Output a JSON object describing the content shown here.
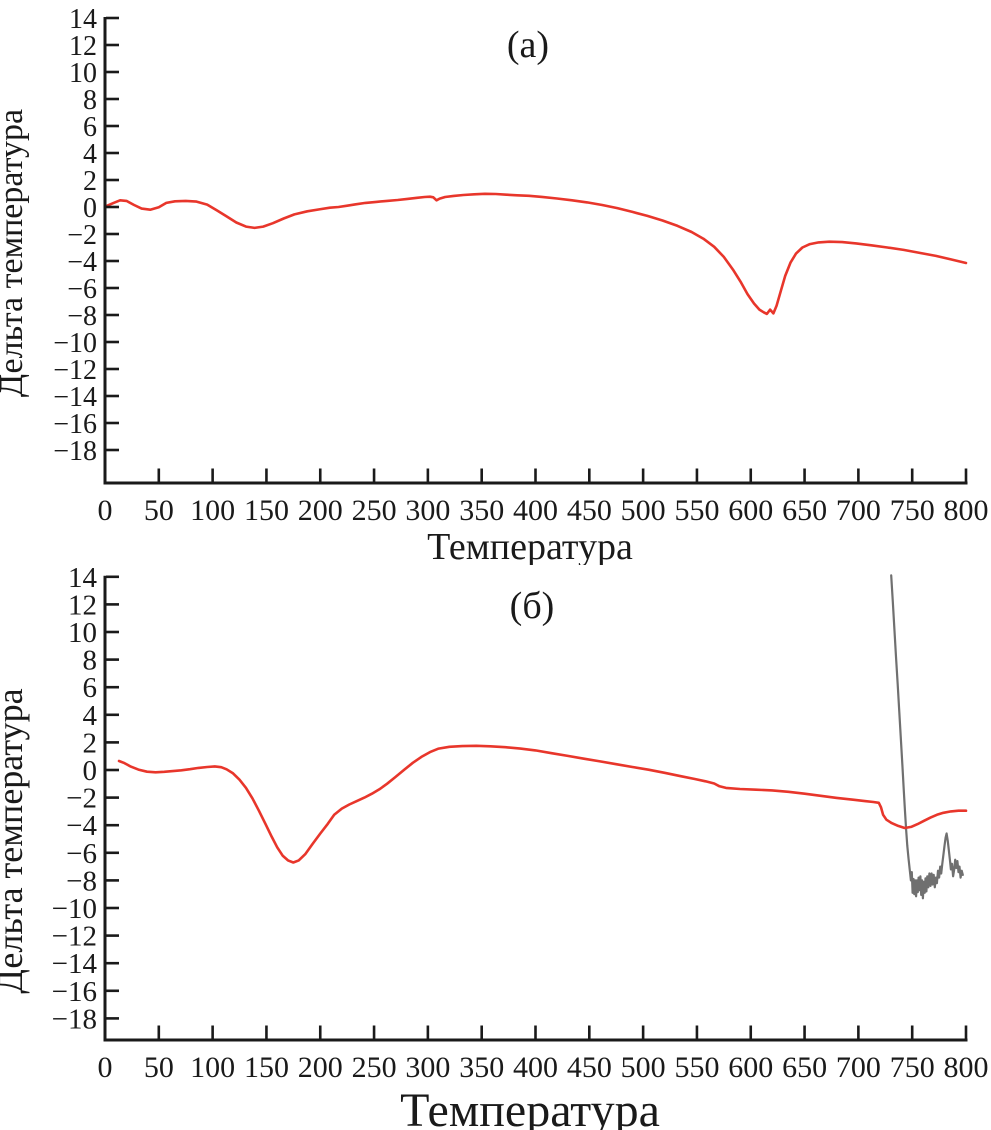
{
  "page": {
    "background": "#ffffff",
    "axis_color": "#1a1a1a",
    "text_color": "#1a1a1a"
  },
  "chart_data": [
    {
      "id": "a",
      "type": "line",
      "title": "(а)",
      "xlabel": "Температура",
      "ylabel": "Дельта температура",
      "xlim": [
        0,
        800
      ],
      "ylim": [
        -18,
        14
      ],
      "grid": false,
      "legend": "none",
      "x_ticks": [
        0,
        50,
        100,
        150,
        200,
        250,
        300,
        350,
        400,
        450,
        500,
        550,
        600,
        650,
        700,
        750,
        800
      ],
      "y_ticks": [
        14,
        12,
        10,
        8,
        6,
        4,
        2,
        0,
        -2,
        -4,
        -6,
        -8,
        -10,
        -12,
        -14,
        -16,
        -18
      ],
      "series": [
        {
          "name": "dta-curve-red",
          "color": "#e8362b",
          "width": 2.6,
          "points": [
            [
              2,
              0.1
            ],
            [
              8,
              0.3
            ],
            [
              14,
              0.5
            ],
            [
              20,
              0.45
            ],
            [
              27,
              0.15
            ],
            [
              34,
              -0.12
            ],
            [
              42,
              -0.2
            ],
            [
              50,
              -0.02
            ],
            [
              57,
              0.3
            ],
            [
              65,
              0.42
            ],
            [
              75,
              0.45
            ],
            [
              85,
              0.4
            ],
            [
              95,
              0.18
            ],
            [
              104,
              -0.25
            ],
            [
              113,
              -0.7
            ],
            [
              122,
              -1.15
            ],
            [
              131,
              -1.45
            ],
            [
              139,
              -1.55
            ],
            [
              147,
              -1.45
            ],
            [
              156,
              -1.2
            ],
            [
              166,
              -0.85
            ],
            [
              176,
              -0.55
            ],
            [
              188,
              -0.32
            ],
            [
              199,
              -0.18
            ],
            [
              209,
              -0.05
            ],
            [
              217,
              0.0
            ],
            [
              225,
              0.1
            ],
            [
              233,
              0.2
            ],
            [
              242,
              0.3
            ],
            [
              252,
              0.38
            ],
            [
              262,
              0.45
            ],
            [
              272,
              0.52
            ],
            [
              281,
              0.6
            ],
            [
              290,
              0.68
            ],
            [
              297,
              0.74
            ],
            [
              302,
              0.76
            ],
            [
              305,
              0.72
            ],
            [
              308,
              0.5
            ],
            [
              311,
              0.62
            ],
            [
              316,
              0.74
            ],
            [
              324,
              0.82
            ],
            [
              333,
              0.89
            ],
            [
              343,
              0.94
            ],
            [
              353,
              0.98
            ],
            [
              363,
              0.96
            ],
            [
              373,
              0.91
            ],
            [
              383,
              0.87
            ],
            [
              394,
              0.83
            ],
            [
              406,
              0.75
            ],
            [
              420,
              0.63
            ],
            [
              434,
              0.5
            ],
            [
              448,
              0.34
            ],
            [
              462,
              0.15
            ],
            [
              476,
              -0.08
            ],
            [
              490,
              -0.36
            ],
            [
              504,
              -0.66
            ],
            [
              518,
              -1.0
            ],
            [
              532,
              -1.4
            ],
            [
              545,
              -1.85
            ],
            [
              556,
              -2.35
            ],
            [
              566,
              -2.95
            ],
            [
              575,
              -3.7
            ],
            [
              584,
              -4.7
            ],
            [
              591,
              -5.6
            ],
            [
              597,
              -6.45
            ],
            [
              603,
              -7.15
            ],
            [
              608,
              -7.6
            ],
            [
              612,
              -7.8
            ],
            [
              615,
              -7.92
            ],
            [
              618,
              -7.6
            ],
            [
              621,
              -7.88
            ],
            [
              624,
              -7.3
            ],
            [
              628,
              -6.2
            ],
            [
              632,
              -5.1
            ],
            [
              637,
              -4.1
            ],
            [
              642,
              -3.45
            ],
            [
              648,
              -3.0
            ],
            [
              655,
              -2.75
            ],
            [
              663,
              -2.62
            ],
            [
              673,
              -2.57
            ],
            [
              685,
              -2.6
            ],
            [
              698,
              -2.7
            ],
            [
              712,
              -2.84
            ],
            [
              727,
              -3.0
            ],
            [
              742,
              -3.18
            ],
            [
              757,
              -3.4
            ],
            [
              772,
              -3.62
            ],
            [
              786,
              -3.88
            ],
            [
              800,
              -4.15
            ]
          ]
        }
      ]
    },
    {
      "id": "b",
      "type": "line",
      "title": "(б)",
      "xlabel": "Температура",
      "ylabel": "Дельта температура",
      "xlim": [
        0,
        800
      ],
      "ylim": [
        -18,
        14
      ],
      "grid": false,
      "legend": "none",
      "x_ticks": [
        0,
        50,
        100,
        150,
        200,
        250,
        300,
        350,
        400,
        450,
        500,
        550,
        600,
        650,
        700,
        750,
        800
      ],
      "y_ticks": [
        14,
        12,
        10,
        8,
        6,
        4,
        2,
        0,
        -2,
        -4,
        -6,
        -8,
        -10,
        -12,
        -14,
        -16,
        -18
      ],
      "series": [
        {
          "name": "noise-curve-gray",
          "color": "#707070",
          "width": 2.2,
          "points": [
            [
              730.5,
              14.1
            ],
            [
              732,
              12.2
            ],
            [
              733.5,
              10.2
            ],
            [
              735,
              8.2
            ],
            [
              736.5,
              6.2
            ],
            [
              738,
              4.2
            ],
            [
              739.5,
              2.2
            ],
            [
              741,
              0.2
            ],
            [
              742.2,
              -1.5
            ],
            [
              743.3,
              -3.0
            ],
            [
              744.4,
              -4.4
            ],
            [
              745.5,
              -5.5
            ],
            [
              746.6,
              -6.4
            ],
            [
              747.7,
              -7.2
            ],
            [
              748.8,
              -8.0
            ],
            [
              749.6,
              -7.4
            ],
            [
              750.4,
              -8.9
            ],
            [
              751.2,
              -7.9
            ],
            [
              752,
              -9.0
            ],
            [
              752.8,
              -8.0
            ],
            [
              753.6,
              -9.15
            ],
            [
              754.4,
              -8.0
            ],
            [
              755.2,
              -8.85
            ],
            [
              756,
              -7.8
            ],
            [
              756.8,
              -8.7
            ],
            [
              757.6,
              -7.7
            ],
            [
              758.4,
              -9.05
            ],
            [
              759.2,
              -8.0
            ],
            [
              760,
              -9.3
            ],
            [
              760.8,
              -8.1
            ],
            [
              761.6,
              -8.9
            ],
            [
              762.4,
              -7.85
            ],
            [
              763.2,
              -8.8
            ],
            [
              764,
              -7.7
            ],
            [
              765,
              -8.5
            ],
            [
              766,
              -7.5
            ],
            [
              767,
              -8.4
            ],
            [
              768,
              -7.5
            ],
            [
              769,
              -8.3
            ],
            [
              770,
              -7.6
            ],
            [
              771,
              -8.5
            ],
            [
              772,
              -7.8
            ],
            [
              773,
              -8.2
            ],
            [
              774,
              -7.3
            ],
            [
              775,
              -7.8
            ],
            [
              776,
              -7.0
            ],
            [
              777,
              -7.5
            ],
            [
              778,
              -6.8
            ],
            [
              779,
              -6.15
            ],
            [
              780,
              -5.5
            ],
            [
              781,
              -4.9
            ],
            [
              782,
              -4.6
            ],
            [
              783,
              -5.1
            ],
            [
              784,
              -5.8
            ],
            [
              785,
              -6.5
            ],
            [
              786,
              -7.2
            ],
            [
              787,
              -6.8
            ],
            [
              788,
              -7.7
            ],
            [
              789,
              -7.2
            ],
            [
              790,
              -6.5
            ],
            [
              791,
              -7.1
            ],
            [
              792,
              -6.6
            ],
            [
              793,
              -7.4
            ],
            [
              794,
              -7.0
            ],
            [
              795,
              -7.8
            ],
            [
              796,
              -7.3
            ],
            [
              797,
              -7.6
            ]
          ]
        },
        {
          "name": "dta-curve-red",
          "color": "#e8362b",
          "width": 2.6,
          "points": [
            [
              13,
              0.65
            ],
            [
              18,
              0.5
            ],
            [
              24,
              0.25
            ],
            [
              31,
              0.03
            ],
            [
              39,
              -0.12
            ],
            [
              47,
              -0.17
            ],
            [
              55,
              -0.13
            ],
            [
              63,
              -0.08
            ],
            [
              71,
              -0.02
            ],
            [
              79,
              0.06
            ],
            [
              87,
              0.15
            ],
            [
              95,
              0.22
            ],
            [
              102,
              0.26
            ],
            [
              108,
              0.2
            ],
            [
              113,
              0.05
            ],
            [
              119,
              -0.25
            ],
            [
              125,
              -0.7
            ],
            [
              131,
              -1.3
            ],
            [
              137,
              -2.05
            ],
            [
              143,
              -2.95
            ],
            [
              149,
              -3.9
            ],
            [
              155,
              -4.85
            ],
            [
              160,
              -5.6
            ],
            [
              165,
              -6.2
            ],
            [
              170,
              -6.55
            ],
            [
              175,
              -6.7
            ],
            [
              180,
              -6.55
            ],
            [
              186,
              -6.1
            ],
            [
              193,
              -5.35
            ],
            [
              200,
              -4.6
            ],
            [
              207,
              -3.9
            ],
            [
              213,
              -3.25
            ],
            [
              220,
              -2.8
            ],
            [
              227,
              -2.5
            ],
            [
              234,
              -2.25
            ],
            [
              241,
              -2.0
            ],
            [
              248,
              -1.72
            ],
            [
              255,
              -1.4
            ],
            [
              262,
              -1.0
            ],
            [
              270,
              -0.5
            ],
            [
              278,
              0.02
            ],
            [
              286,
              0.52
            ],
            [
              294,
              0.95
            ],
            [
              302,
              1.3
            ],
            [
              310,
              1.55
            ],
            [
              320,
              1.68
            ],
            [
              332,
              1.73
            ],
            [
              345,
              1.75
            ],
            [
              358,
              1.72
            ],
            [
              372,
              1.65
            ],
            [
              386,
              1.55
            ],
            [
              400,
              1.42
            ],
            [
              415,
              1.22
            ],
            [
              430,
              1.02
            ],
            [
              445,
              0.82
            ],
            [
              460,
              0.62
            ],
            [
              475,
              0.42
            ],
            [
              490,
              0.22
            ],
            [
              505,
              0.02
            ],
            [
              520,
              -0.2
            ],
            [
              535,
              -0.45
            ],
            [
              548,
              -0.65
            ],
            [
              558,
              -0.82
            ],
            [
              566,
              -0.98
            ],
            [
              571,
              -1.18
            ],
            [
              577,
              -1.3
            ],
            [
              590,
              -1.38
            ],
            [
              605,
              -1.43
            ],
            [
              620,
              -1.48
            ],
            [
              635,
              -1.58
            ],
            [
              650,
              -1.72
            ],
            [
              665,
              -1.87
            ],
            [
              680,
              -2.02
            ],
            [
              695,
              -2.15
            ],
            [
              706,
              -2.25
            ],
            [
              714,
              -2.32
            ],
            [
              719,
              -2.38
            ],
            [
              721,
              -2.7
            ],
            [
              723,
              -3.25
            ],
            [
              726,
              -3.6
            ],
            [
              731,
              -3.85
            ],
            [
              737,
              -4.05
            ],
            [
              743,
              -4.2
            ],
            [
              749,
              -4.12
            ],
            [
              755,
              -3.92
            ],
            [
              761,
              -3.68
            ],
            [
              767,
              -3.45
            ],
            [
              773,
              -3.25
            ],
            [
              779,
              -3.1
            ],
            [
              786,
              -3.0
            ],
            [
              793,
              -2.95
            ],
            [
              800,
              -2.95
            ]
          ]
        }
      ]
    }
  ]
}
